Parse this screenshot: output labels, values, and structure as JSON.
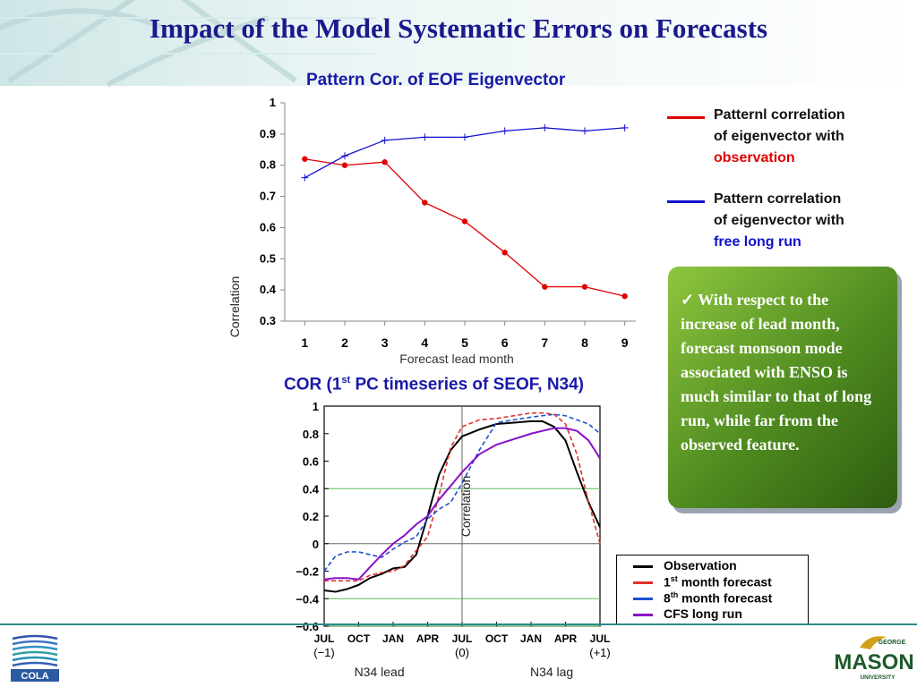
{
  "slide": {
    "title": "Impact of the Model Systematic Errors on Forecasts",
    "note": "✓ With respect to the increase of lead month, forecast monsoon mode associated with ENSO is much similar to that of long run, while far from the observed feature.",
    "logo_left": "COLA",
    "logo_right_top": "GEORGE",
    "logo_right_main": "MASON",
    "logo_right_sub": "UNIVERSITY",
    "colors": {
      "title": "#1a1a8c",
      "chart_title": "#1a1aa8",
      "note_bg": "#4e8a1f",
      "rule": "#2a8a8a"
    }
  },
  "legend_top": [
    {
      "line1": "Patternl correlation",
      "line2": "of eigenvector with",
      "line3": "observation",
      "color": "#e00000"
    },
    {
      "line1": "Pattern correlation",
      "line2": "of eigenvector with",
      "line3": "free long run",
      "color": "#1010d0"
    }
  ],
  "legend_bottom": [
    {
      "label": "Observation",
      "sup": "",
      "rest": "",
      "color": "#000000"
    },
    {
      "label": "1",
      "sup": "st",
      "rest": " month forecast",
      "color": "#e03030"
    },
    {
      "label": "8",
      "sup": "th",
      "rest": " month forecast",
      "color": "#2050d0"
    },
    {
      "label": "CFS long run",
      "sup": "",
      "rest": "",
      "color": "#8a10c8"
    }
  ],
  "chart_data": [
    {
      "type": "line",
      "title": "Pattern Cor. of EOF Eigenvector",
      "xlabel": "Forecast lead month",
      "ylabel": "Correlation",
      "x": [
        1,
        2,
        3,
        4,
        5,
        6,
        7,
        8,
        9
      ],
      "xlim": [
        0.5,
        9.5
      ],
      "ylim": [
        0.3,
        1.0
      ],
      "yticks": [
        "0.3",
        "0.4",
        "0.5",
        "0.6",
        "0.7",
        "0.8",
        "0.9",
        "1"
      ],
      "grid": false,
      "series": [
        {
          "key": "observation",
          "color": "#e00000",
          "marker": "dot",
          "values": [
            0.82,
            0.8,
            0.81,
            0.68,
            0.62,
            0.52,
            0.41,
            0.41,
            0.38
          ]
        },
        {
          "key": "free long run",
          "color": "#1010d0",
          "marker": "plus",
          "values": [
            0.76,
            0.83,
            0.88,
            0.89,
            0.89,
            0.91,
            0.92,
            0.91,
            0.92
          ]
        }
      ]
    },
    {
      "type": "line",
      "title_main": "COR (1",
      "title_sup": "st",
      "title_rest": " PC timeseries of SEOF, N34)",
      "ylabel": "Correlation",
      "x_ticks": [
        "JUL",
        "OCT",
        "JAN",
        "APR",
        "JUL",
        "OCT",
        "JAN",
        "APR",
        "JUL"
      ],
      "x_sub": [
        {
          "i": 0,
          "text": "(−1)"
        },
        {
          "i": 4,
          "text": "(0)"
        },
        {
          "i": 8,
          "text": "(+1)"
        }
      ],
      "x_groups": [
        "N34 lead",
        "N34 lag"
      ],
      "xlim": [
        0,
        8
      ],
      "ylim": [
        -0.6,
        1.0
      ],
      "yticks": [
        "−0.6",
        "−0.4",
        "−0.2",
        "0",
        "0.2",
        "0.4",
        "0.6",
        "0.8",
        "1"
      ],
      "reference_lines": [
        0.4,
        -0.4,
        -0.6
      ],
      "series": [
        {
          "name": "Observation",
          "color": "#000000",
          "dash": "",
          "x": [
            0,
            0.33,
            0.67,
            1,
            1.33,
            1.67,
            2,
            2.33,
            2.67,
            3,
            3.33,
            3.67,
            4,
            4.5,
            5,
            5.5,
            6,
            6.33,
            6.67,
            7,
            7.33,
            7.67,
            8
          ],
          "y": [
            -0.34,
            -0.35,
            -0.33,
            -0.3,
            -0.25,
            -0.22,
            -0.18,
            -0.17,
            -0.08,
            0.2,
            0.5,
            0.68,
            0.78,
            0.83,
            0.87,
            0.88,
            0.89,
            0.89,
            0.85,
            0.75,
            0.52,
            0.3,
            0.12
          ]
        },
        {
          "name": "1st month forecast",
          "color": "#e03030",
          "dash": "5,3",
          "x": [
            0,
            0.33,
            0.67,
            1,
            1.33,
            1.67,
            2,
            2.33,
            2.67,
            3,
            3.33,
            3.67,
            4,
            4.5,
            5,
            5.5,
            6,
            6.33,
            6.67,
            7,
            7.33,
            7.67,
            8
          ],
          "y": [
            -0.27,
            -0.27,
            -0.27,
            -0.27,
            -0.23,
            -0.21,
            -0.2,
            -0.16,
            -0.05,
            0.05,
            0.35,
            0.7,
            0.85,
            0.9,
            0.91,
            0.93,
            0.95,
            0.95,
            0.94,
            0.87,
            0.65,
            0.3,
            0.0
          ]
        },
        {
          "name": "8th month forecast",
          "color": "#2050d0",
          "dash": "5,3",
          "x": [
            0,
            0.33,
            0.67,
            1,
            1.33,
            1.67,
            2,
            2.33,
            2.67,
            3,
            3.33,
            3.67,
            4,
            4.5,
            5,
            5.5,
            6,
            6.33,
            6.67,
            7,
            7.33,
            7.67,
            8
          ],
          "y": [
            -0.2,
            -0.09,
            -0.06,
            -0.06,
            -0.08,
            -0.1,
            -0.04,
            0.01,
            0.05,
            0.18,
            0.25,
            0.3,
            0.44,
            0.68,
            0.88,
            0.9,
            0.92,
            0.93,
            0.94,
            0.93,
            0.9,
            0.87,
            0.8
          ]
        },
        {
          "name": "CFS long run",
          "color": "#8a10c8",
          "dash": "",
          "x": [
            0,
            0.33,
            0.67,
            1,
            1.33,
            1.67,
            2,
            2.33,
            2.67,
            3,
            3.33,
            3.67,
            4,
            4.5,
            5,
            5.5,
            6,
            6.33,
            6.67,
            7,
            7.33,
            7.67,
            8
          ],
          "y": [
            -0.26,
            -0.25,
            -0.25,
            -0.26,
            -0.17,
            -0.08,
            0.0,
            0.06,
            0.14,
            0.2,
            0.32,
            0.42,
            0.52,
            0.65,
            0.72,
            0.76,
            0.8,
            0.82,
            0.84,
            0.84,
            0.82,
            0.75,
            0.62
          ]
        }
      ]
    }
  ]
}
